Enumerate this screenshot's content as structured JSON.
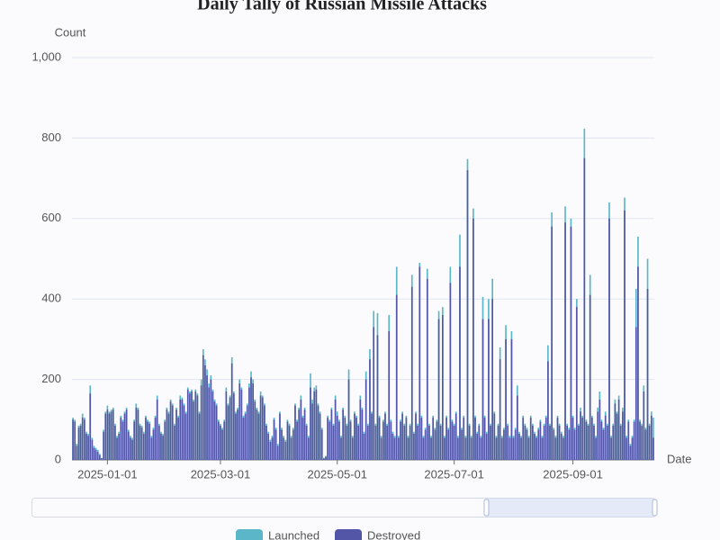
{
  "chart_data": {
    "type": "bar",
    "title": "Daily Tally of Russian Missile Attacks",
    "y_label": "Count",
    "x_label": "Date",
    "ylim": [
      0,
      1000
    ],
    "yticks": [
      0,
      200,
      400,
      600,
      800,
      {
        "value": 1000,
        "label": "1,000"
      }
    ],
    "grid": true,
    "xticks": [
      "2025-01-01",
      "2025-03-01",
      "2025-05-01",
      "2025-07-01",
      "2025-09-01"
    ],
    "legend": "bottom",
    "x": [
      "2024-12-14",
      "2024-12-15",
      "2024-12-16",
      "2024-12-17",
      "2024-12-18",
      "2024-12-19",
      "2024-12-20",
      "2024-12-21",
      "2024-12-22",
      "2024-12-23",
      "2024-12-24",
      "2024-12-25",
      "2024-12-26",
      "2024-12-27",
      "2024-12-28",
      "2024-12-29",
      "2024-12-30",
      "2024-12-31",
      "2025-01-01",
      "2025-01-02",
      "2025-01-03",
      "2025-01-04",
      "2025-01-05",
      "2025-01-06",
      "2025-01-07",
      "2025-01-08",
      "2025-01-09",
      "2025-01-10",
      "2025-01-11",
      "2025-01-12",
      "2025-01-13",
      "2025-01-14",
      "2025-01-15",
      "2025-01-16",
      "2025-01-17",
      "2025-01-18",
      "2025-01-19",
      "2025-01-20",
      "2025-01-21",
      "2025-01-22",
      "2025-01-23",
      "2025-01-24",
      "2025-01-25",
      "2025-01-26",
      "2025-01-27",
      "2025-01-28",
      "2025-01-29",
      "2025-01-30",
      "2025-01-31",
      "2025-02-01",
      "2025-02-02",
      "2025-02-03",
      "2025-02-04",
      "2025-02-05",
      "2025-02-06",
      "2025-02-07",
      "2025-02-08",
      "2025-02-09",
      "2025-02-10",
      "2025-02-11",
      "2025-02-12",
      "2025-02-13",
      "2025-02-14",
      "2025-02-15",
      "2025-02-16",
      "2025-02-17",
      "2025-02-18",
      "2025-02-19",
      "2025-02-20",
      "2025-02-21",
      "2025-02-22",
      "2025-02-23",
      "2025-02-24",
      "2025-02-25",
      "2025-02-26",
      "2025-02-27",
      "2025-02-28",
      "2025-03-01",
      "2025-03-02",
      "2025-03-03",
      "2025-03-04",
      "2025-03-05",
      "2025-03-06",
      "2025-03-07",
      "2025-03-08",
      "2025-03-09",
      "2025-03-10",
      "2025-03-11",
      "2025-03-12",
      "2025-03-13",
      "2025-03-14",
      "2025-03-15",
      "2025-03-16",
      "2025-03-17",
      "2025-03-18",
      "2025-03-19",
      "2025-03-20",
      "2025-03-21",
      "2025-03-22",
      "2025-03-23",
      "2025-03-24",
      "2025-03-25",
      "2025-03-26",
      "2025-03-27",
      "2025-03-28",
      "2025-03-29",
      "2025-03-30",
      "2025-03-31",
      "2025-04-01",
      "2025-04-02",
      "2025-04-03",
      "2025-04-04",
      "2025-04-05",
      "2025-04-06",
      "2025-04-07",
      "2025-04-08",
      "2025-04-09",
      "2025-04-10",
      "2025-04-11",
      "2025-04-12",
      "2025-04-13",
      "2025-04-14",
      "2025-04-15",
      "2025-04-16",
      "2025-04-17",
      "2025-04-18",
      "2025-04-19",
      "2025-04-20",
      "2025-04-21",
      "2025-04-22",
      "2025-04-23",
      "2025-04-24",
      "2025-04-25",
      "2025-04-26",
      "2025-04-27",
      "2025-04-28",
      "2025-04-29",
      "2025-04-30",
      "2025-05-01",
      "2025-05-02",
      "2025-05-03",
      "2025-05-04",
      "2025-05-05",
      "2025-05-06",
      "2025-05-07",
      "2025-05-08",
      "2025-05-09",
      "2025-05-10",
      "2025-05-11",
      "2025-05-12",
      "2025-05-13",
      "2025-05-14",
      "2025-05-15",
      "2025-05-16",
      "2025-05-17",
      "2025-05-18",
      "2025-05-19",
      "2025-05-20",
      "2025-05-21",
      "2025-05-22",
      "2025-05-23",
      "2025-05-24",
      "2025-05-25",
      "2025-05-26",
      "2025-05-27",
      "2025-05-28",
      "2025-05-29",
      "2025-05-30",
      "2025-05-31",
      "2025-06-01",
      "2025-06-02",
      "2025-06-03",
      "2025-06-04",
      "2025-06-05",
      "2025-06-06",
      "2025-06-07",
      "2025-06-08",
      "2025-06-09",
      "2025-06-10",
      "2025-06-11",
      "2025-06-12",
      "2025-06-13",
      "2025-06-14",
      "2025-06-15",
      "2025-06-16",
      "2025-06-17",
      "2025-06-18",
      "2025-06-19",
      "2025-06-20",
      "2025-06-21",
      "2025-06-22",
      "2025-06-23",
      "2025-06-24",
      "2025-06-25",
      "2025-06-26",
      "2025-06-27",
      "2025-06-28",
      "2025-06-29",
      "2025-06-30",
      "2025-07-01",
      "2025-07-02",
      "2025-07-03",
      "2025-07-04",
      "2025-07-05",
      "2025-07-06",
      "2025-07-07",
      "2025-07-08",
      "2025-07-09",
      "2025-07-10",
      "2025-07-11",
      "2025-07-12",
      "2025-07-13",
      "2025-07-14",
      "2025-07-15",
      "2025-07-16",
      "2025-07-17",
      "2025-07-18",
      "2025-07-19",
      "2025-07-20",
      "2025-07-21",
      "2025-07-22",
      "2025-07-23",
      "2025-07-24",
      "2025-07-25",
      "2025-07-26",
      "2025-07-27",
      "2025-07-28",
      "2025-07-29",
      "2025-07-30",
      "2025-07-31",
      "2025-08-01",
      "2025-08-02",
      "2025-08-03",
      "2025-08-04",
      "2025-08-05",
      "2025-08-06",
      "2025-08-07",
      "2025-08-08",
      "2025-08-09",
      "2025-08-10",
      "2025-08-11",
      "2025-08-12",
      "2025-08-13",
      "2025-08-14",
      "2025-08-15",
      "2025-08-16",
      "2025-08-17",
      "2025-08-18",
      "2025-08-19",
      "2025-08-20",
      "2025-08-21",
      "2025-08-22",
      "2025-08-23",
      "2025-08-24",
      "2025-08-25",
      "2025-08-26",
      "2025-08-27",
      "2025-08-28",
      "2025-08-29",
      "2025-08-30",
      "2025-08-31",
      "2025-09-01",
      "2025-09-02",
      "2025-09-03",
      "2025-09-04",
      "2025-09-05",
      "2025-09-06",
      "2025-09-07",
      "2025-09-08",
      "2025-09-09",
      "2025-09-10",
      "2025-09-11",
      "2025-09-12",
      "2025-09-13",
      "2025-09-14",
      "2025-09-15",
      "2025-09-16",
      "2025-09-17",
      "2025-09-18",
      "2025-09-19",
      "2025-09-20",
      "2025-09-21",
      "2025-09-22",
      "2025-09-23",
      "2025-09-24",
      "2025-09-25",
      "2025-09-26",
      "2025-09-27",
      "2025-09-28",
      "2025-09-29",
      "2025-09-30",
      "2025-10-01",
      "2025-10-02",
      "2025-10-03",
      "2025-10-04",
      "2025-10-05",
      "2025-10-06",
      "2025-10-07",
      "2025-10-08",
      "2025-10-09",
      "2025-10-10",
      "2025-10-11",
      "2025-10-12",
      "2025-10-13"
    ],
    "series": [
      {
        "name": "Launched",
        "color": "#5bb7c8",
        "values": [
          105,
          100,
          40,
          85,
          90,
          115,
          105,
          70,
          65,
          185,
          55,
          35,
          30,
          25,
          15,
          5,
          75,
          120,
          135,
          120,
          125,
          130,
          90,
          60,
          70,
          110,
          100,
          120,
          130,
          75,
          60,
          55,
          100,
          140,
          130,
          90,
          85,
          70,
          110,
          100,
          95,
          60,
          80,
          110,
          160,
          90,
          70,
          65,
          100,
          130,
          120,
          150,
          140,
          90,
          130,
          110,
          160,
          155,
          140,
          120,
          180,
          170,
          175,
          150,
          175,
          165,
          120,
          200,
          275,
          250,
          225,
          190,
          210,
          175,
          150,
          140,
          100,
          90,
          80,
          100,
          180,
          140,
          160,
          255,
          170,
          120,
          130,
          200,
          180,
          110,
          120,
          140,
          190,
          220,
          200,
          150,
          130,
          120,
          170,
          160,
          140,
          90,
          70,
          50,
          60,
          105,
          80,
          40,
          120,
          80,
          60,
          50,
          100,
          90,
          60,
          80,
          140,
          100,
          130,
          160,
          110,
          130,
          90,
          60,
          215,
          150,
          180,
          185,
          140,
          120,
          80,
          5,
          10,
          110,
          100,
          130,
          90,
          160,
          120,
          100,
          60,
          130,
          110,
          90,
          225,
          100,
          60,
          120,
          110,
          90,
          160,
          130,
          70,
          220,
          90,
          275,
          120,
          370,
          90,
          365,
          110,
          60,
          100,
          120,
          90,
          360,
          100,
          70,
          60,
          480,
          60,
          100,
          120,
          90,
          110,
          60,
          90,
          460,
          70,
          120,
          90,
          490,
          110,
          60,
          80,
          475,
          90,
          60,
          110,
          80,
          100,
          370,
          90,
          380,
          60,
          110,
          80,
          480,
          100,
          90,
          120,
          60,
          560,
          80,
          110,
          60,
          748,
          90,
          60,
          625,
          110,
          70,
          90,
          60,
          405,
          110,
          70,
          400,
          90,
          450,
          120,
          60,
          90,
          280,
          60,
          80,
          335,
          90,
          60,
          320,
          60,
          80,
          185,
          70,
          60,
          110,
          90,
          80,
          60,
          110,
          90,
          70,
          60,
          80,
          100,
          60,
          90,
          110,
          285,
          90,
          615,
          80,
          60,
          110,
          90,
          70,
          60,
          630,
          90,
          80,
          600,
          110,
          80,
          400,
          90,
          130,
          110,
          823,
          100,
          90,
          460,
          110,
          90,
          60,
          130,
          170,
          100,
          80,
          120,
          90,
          640,
          60,
          90,
          150,
          120,
          160,
          90,
          130,
          652,
          60,
          100,
          40,
          60,
          100,
          425,
          555,
          100,
          90,
          185,
          80,
          500,
          90,
          120,
          105
        ]
      },
      {
        "name": "Destroyed",
        "color": "#5356a6",
        "values": [
          100,
          95,
          35,
          80,
          85,
          105,
          100,
          65,
          60,
          165,
          50,
          30,
          25,
          20,
          12,
          4,
          70,
          115,
          125,
          115,
          120,
          125,
          85,
          55,
          65,
          105,
          95,
          115,
          125,
          70,
          55,
          50,
          95,
          130,
          125,
          85,
          80,
          65,
          105,
          95,
          90,
          55,
          75,
          105,
          150,
          85,
          65,
          60,
          95,
          125,
          115,
          145,
          135,
          85,
          125,
          105,
          150,
          150,
          135,
          115,
          175,
          165,
          170,
          145,
          170,
          160,
          115,
          185,
          260,
          235,
          210,
          180,
          200,
          170,
          145,
          135,
          95,
          85,
          75,
          95,
          170,
          135,
          155,
          240,
          165,
          115,
          125,
          190,
          175,
          105,
          115,
          135,
          180,
          205,
          190,
          145,
          125,
          115,
          160,
          155,
          135,
          85,
          65,
          45,
          55,
          100,
          75,
          35,
          115,
          75,
          55,
          45,
          95,
          85,
          55,
          75,
          135,
          95,
          125,
          150,
          105,
          125,
          85,
          55,
          180,
          140,
          170,
          175,
          135,
          115,
          75,
          4,
          8,
          105,
          95,
          125,
          85,
          150,
          110,
          95,
          55,
          125,
          105,
          85,
          200,
          95,
          55,
          115,
          105,
          85,
          150,
          125,
          65,
          200,
          85,
          250,
          115,
          330,
          85,
          310,
          105,
          55,
          95,
          115,
          85,
          320,
          95,
          65,
          55,
          410,
          55,
          95,
          115,
          85,
          105,
          55,
          85,
          430,
          65,
          115,
          85,
          480,
          105,
          55,
          75,
          450,
          85,
          55,
          105,
          75,
          95,
          350,
          85,
          360,
          55,
          105,
          75,
          440,
          95,
          85,
          115,
          55,
          480,
          75,
          105,
          55,
          720,
          85,
          55,
          600,
          105,
          65,
          85,
          55,
          350,
          105,
          65,
          350,
          85,
          400,
          115,
          55,
          85,
          250,
          55,
          75,
          300,
          85,
          55,
          300,
          55,
          75,
          160,
          65,
          55,
          105,
          85,
          75,
          55,
          105,
          85,
          65,
          55,
          75,
          95,
          55,
          85,
          105,
          245,
          85,
          580,
          75,
          55,
          105,
          85,
          65,
          55,
          590,
          85,
          75,
          580,
          105,
          75,
          380,
          85,
          120,
          105,
          750,
          95,
          85,
          410,
          105,
          85,
          55,
          120,
          150,
          95,
          75,
          110,
          85,
          600,
          55,
          85,
          140,
          115,
          150,
          85,
          120,
          620,
          55,
          95,
          35,
          55,
          95,
          330,
          480,
          95,
          85,
          170,
          75,
          425,
          85,
          110,
          55
        ]
      }
    ]
  }
}
